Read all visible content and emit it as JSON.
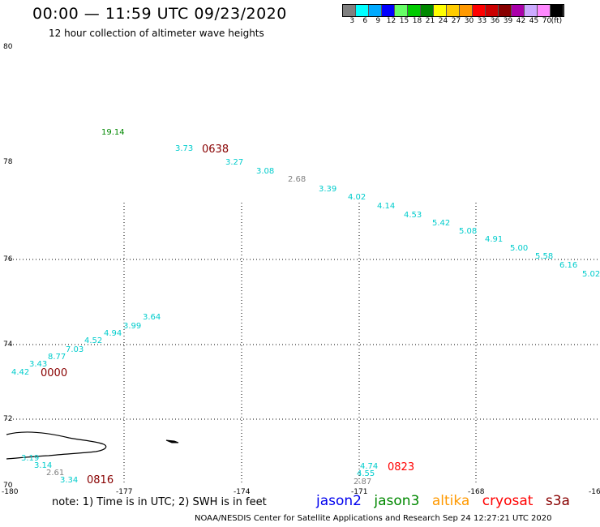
{
  "header": {
    "title": "00:00 — 11:59 UTC 09/23/2020",
    "subtitle": "12 hour collection of altimeter wave heights"
  },
  "colorbar": {
    "colors": [
      "#808080",
      "#00ffff",
      "#00aaff",
      "#0000ff",
      "#66ff66",
      "#00cc00",
      "#008800",
      "#ffff00",
      "#ffcc00",
      "#ff9900",
      "#ff0000",
      "#cc0000",
      "#880000",
      "#aa00aa",
      "#ccaaff",
      "#ff88ff",
      "#000000"
    ],
    "labels": [
      "3",
      "6",
      "9",
      "12",
      "15",
      "18",
      "21",
      "24",
      "27",
      "30",
      "33",
      "36",
      "39",
      "42",
      "45",
      "70",
      "(ft)"
    ]
  },
  "map": {
    "lat_labels": [
      "80",
      "78",
      "76",
      "74",
      "72",
      "70"
    ],
    "lon_labels": [
      "-180",
      "-177",
      "-174",
      "-171",
      "-168",
      "-16"
    ],
    "track_labels": [
      {
        "id": "t1",
        "text": "0638",
        "color": "#880000"
      },
      {
        "id": "t2",
        "text": "0000",
        "color": "#880000"
      },
      {
        "id": "t3",
        "text": "0816",
        "color": "#880000"
      },
      {
        "id": "t4",
        "text": "0823",
        "color": "#ff0000"
      }
    ],
    "wave_heights": [
      {
        "id": "w1",
        "text": "19.14",
        "color": "#008800"
      },
      {
        "id": "w2",
        "text": "3.73",
        "color": "#00cccc"
      },
      {
        "id": "w3",
        "text": "3.27",
        "color": "#00cccc"
      },
      {
        "id": "w4",
        "text": "3.08",
        "color": "#00cccc"
      },
      {
        "id": "w5",
        "text": "2.68",
        "color": "#808080"
      },
      {
        "id": "w6",
        "text": "3.39",
        "color": "#00cccc"
      },
      {
        "id": "w7",
        "text": "4.02",
        "color": "#00cccc"
      },
      {
        "id": "w8",
        "text": "4.14",
        "color": "#00cccc"
      },
      {
        "id": "w9",
        "text": "4.53",
        "color": "#00cccc"
      },
      {
        "id": "w10",
        "text": "5.42",
        "color": "#00cccc"
      },
      {
        "id": "w11",
        "text": "5.08",
        "color": "#00cccc"
      },
      {
        "id": "w12",
        "text": "4.91",
        "color": "#00cccc"
      },
      {
        "id": "w13",
        "text": "5.00",
        "color": "#00cccc"
      },
      {
        "id": "w14",
        "text": "5.58",
        "color": "#00cccc"
      },
      {
        "id": "w15",
        "text": "6.16",
        "color": "#00cccc"
      },
      {
        "id": "w16",
        "text": "5.02",
        "color": "#00cccc"
      },
      {
        "id": "w17",
        "text": "3.64",
        "color": "#00cccc"
      },
      {
        "id": "w18",
        "text": "3.99",
        "color": "#00cccc"
      },
      {
        "id": "w19",
        "text": "4.94",
        "color": "#00cccc"
      },
      {
        "id": "w20",
        "text": "4.52",
        "color": "#00cccc"
      },
      {
        "id": "w21",
        "text": "7.03",
        "color": "#00cccc"
      },
      {
        "id": "w22",
        "text": "8.77",
        "color": "#00cccc"
      },
      {
        "id": "w23",
        "text": "3.43",
        "color": "#00cccc"
      },
      {
        "id": "w24",
        "text": "4.42",
        "color": "#00cccc"
      },
      {
        "id": "w25",
        "text": "3.19",
        "color": "#00cccc"
      },
      {
        "id": "w26",
        "text": "3.14",
        "color": "#00cccc"
      },
      {
        "id": "w27",
        "text": "2.61",
        "color": "#808080"
      },
      {
        "id": "w28",
        "text": "3.34",
        "color": "#00cccc"
      },
      {
        "id": "w29",
        "text": "4.74",
        "color": "#00cccc"
      },
      {
        "id": "w30",
        "text": "4.55",
        "color": "#00cccc"
      },
      {
        "id": "w31",
        "text": "2.87",
        "color": "#808080"
      }
    ]
  },
  "footer": {
    "note": "note:  1) Time is in UTC;  2) SWH is in feet",
    "legend": [
      {
        "text": "jason2",
        "color": "#0000ee"
      },
      {
        "text": "jason3",
        "color": "#008800"
      },
      {
        "text": "altika",
        "color": "#ff9900"
      },
      {
        "text": "cryosat",
        "color": "#ff0000"
      },
      {
        "text": "s3a",
        "color": "#880000"
      }
    ],
    "credit": "NOAA/NESDIS Center for Satellite Applications and Research     Sep 24 12:27:21 UTC 2020"
  }
}
